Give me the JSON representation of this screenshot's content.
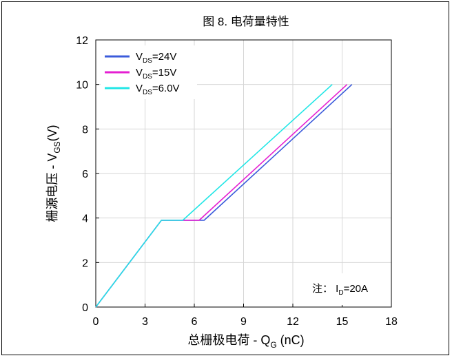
{
  "chart_data": {
    "type": "line",
    "title": "图 8. 电荷量特性",
    "xlabel_main": "总栅极电荷 - Q",
    "xlabel_sub": "G",
    "xlabel_unit": " (nC)",
    "ylabel_main": "栅源电压 - V",
    "ylabel_sub": "GS",
    "ylabel_unit": "(V)",
    "xlim": [
      0,
      18
    ],
    "ylim": [
      0,
      12
    ],
    "x_ticks": [
      "0",
      "3",
      "6",
      "9",
      "12",
      "15",
      "18"
    ],
    "y_ticks": [
      "0",
      "2",
      "4",
      "6",
      "8",
      "10",
      "12"
    ],
    "grid": true,
    "legend_position": "top-left",
    "series": [
      {
        "name_main": "V",
        "name_sub": "DS",
        "name_value": "=24V",
        "color": "#3b5bdb",
        "x": [
          0,
          4.0,
          6.6,
          15.6
        ],
        "y": [
          0,
          3.9,
          3.9,
          10
        ]
      },
      {
        "name_main": "V",
        "name_sub": "DS",
        "name_value": "=15V",
        "color": "#e51fd2",
        "x": [
          0,
          4.0,
          6.3,
          15.3
        ],
        "y": [
          0,
          3.9,
          3.9,
          10
        ]
      },
      {
        "name_main": "V",
        "name_sub": "DS",
        "name_value": "=6.0V",
        "color": "#22e6e6",
        "x": [
          0,
          4.0,
          5.3,
          14.4
        ],
        "y": [
          0,
          3.9,
          3.9,
          10
        ]
      }
    ],
    "annotation": {
      "prefix": "注：  I",
      "sub": "D",
      "suffix": "=20A"
    }
  }
}
